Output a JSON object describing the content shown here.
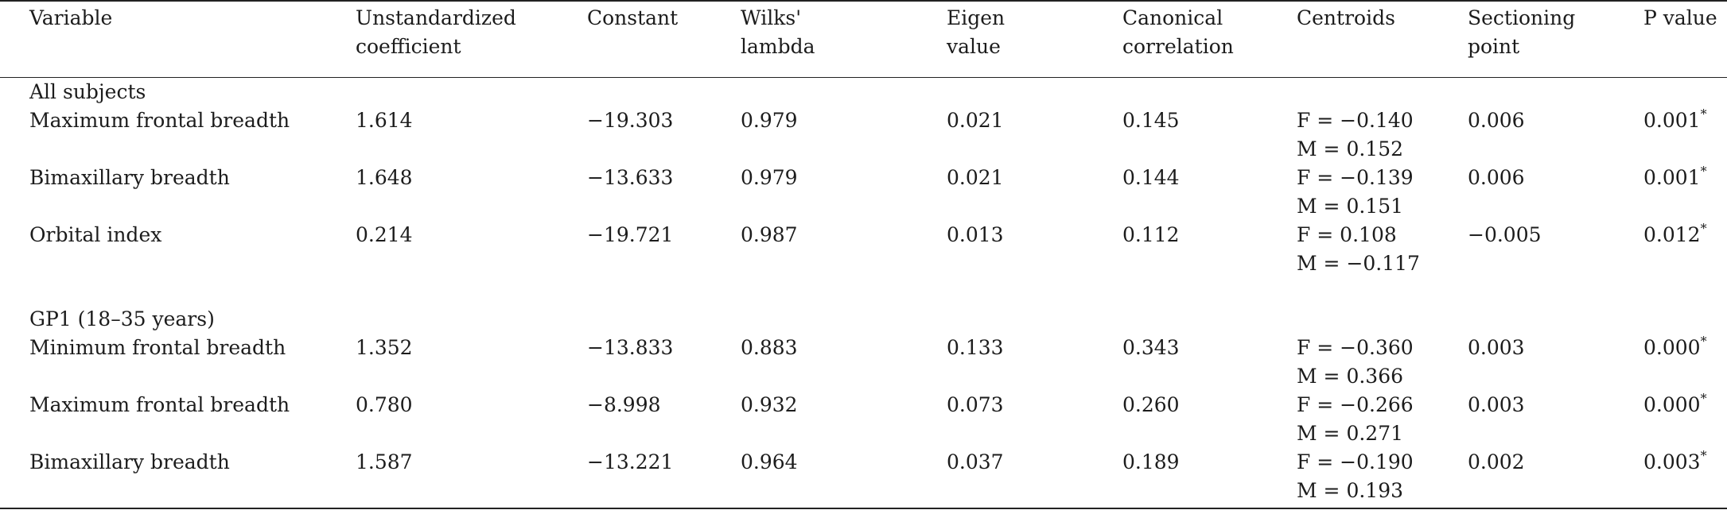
{
  "headers": [
    [
      "Variable",
      ""
    ],
    [
      "Unstandardized",
      "coefficient"
    ],
    [
      "Constant",
      ""
    ],
    [
      "Wilks'",
      "lambda"
    ],
    [
      "Eigen",
      "value"
    ],
    [
      "Canonical",
      "correlation"
    ],
    [
      "Centroids",
      ""
    ],
    [
      "Sectioning",
      "point"
    ],
    [
      "P value",
      ""
    ]
  ],
  "groups": [
    {
      "label": "All subjects",
      "rows": [
        {
          "variable": "Maximum frontal breadth",
          "coef": "1.614",
          "constant": "−19.303",
          "wilks": "0.979",
          "eigen": "0.021",
          "canonical": "0.145",
          "centroid_f": "F = −0.140",
          "centroid_m": "M = 0.152",
          "sectioning": "0.006",
          "p": "0.001",
          "mark": "*"
        },
        {
          "variable": "Bimaxillary breadth",
          "coef": "1.648",
          "constant": "−13.633",
          "wilks": "0.979",
          "eigen": "0.021",
          "canonical": "0.144",
          "centroid_f": "F = −0.139",
          "centroid_m": "M = 0.151",
          "sectioning": "0.006",
          "p": "0.001",
          "mark": "*"
        },
        {
          "variable": "Orbital index",
          "coef": "0.214",
          "constant": "−19.721",
          "wilks": "0.987",
          "eigen": "0.013",
          "canonical": "0.112",
          "centroid_f": "F = 0.108",
          "centroid_m": "M = −0.117",
          "sectioning": "−0.005",
          "p": "0.012",
          "mark": "*"
        }
      ]
    },
    {
      "label": "GP1 (18–35 years)",
      "rows": [
        {
          "variable": "Minimum frontal breadth",
          "coef": "1.352",
          "constant": "−13.833",
          "wilks": "0.883",
          "eigen": "0.133",
          "canonical": "0.343",
          "centroid_f": "F = −0.360",
          "centroid_m": "M = 0.366",
          "sectioning": "0.003",
          "p": "0.000",
          "mark": "*"
        },
        {
          "variable": "Maximum frontal breadth",
          "coef": "0.780",
          "constant": "−8.998",
          "wilks": "0.932",
          "eigen": "0.073",
          "canonical": "0.260",
          "centroid_f": "F = −0.266",
          "centroid_m": "M = 0.271",
          "sectioning": "0.003",
          "p": "0.000",
          "mark": "*"
        },
        {
          "variable": "Bimaxillary breadth",
          "coef": "1.587",
          "constant": "−13.221",
          "wilks": "0.964",
          "eigen": "0.037",
          "canonical": "0.189",
          "centroid_f": "F = −0.190",
          "centroid_m": "M = 0.193",
          "sectioning": "0.002",
          "p": "0.003",
          "mark": "*"
        }
      ]
    }
  ]
}
